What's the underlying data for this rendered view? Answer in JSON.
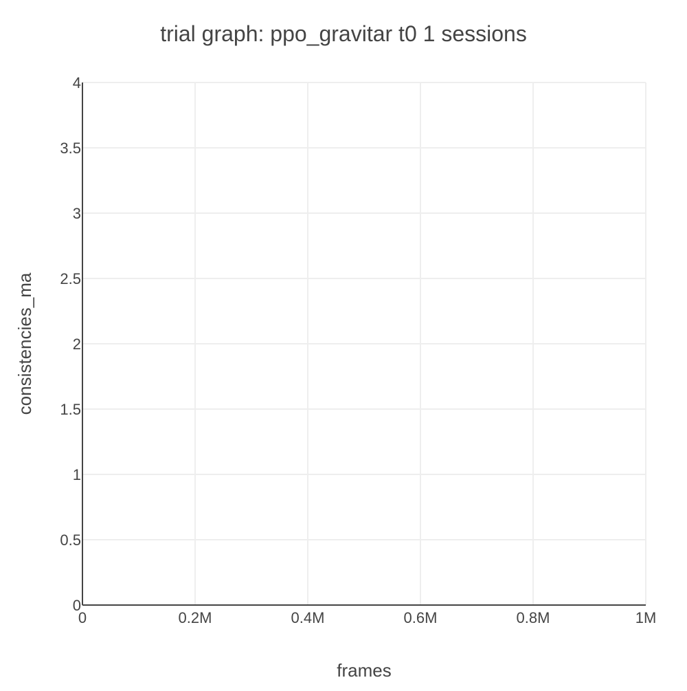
{
  "chart_data": {
    "type": "line",
    "title": "trial graph: ppo_gravitar t0 1 sessions",
    "xlabel": "frames",
    "ylabel": "consistencies_ma",
    "xlim": [
      0,
      1000000
    ],
    "ylim": [
      0,
      4
    ],
    "grid": true,
    "x_ticks": [
      {
        "value": 0,
        "label": "0"
      },
      {
        "value": 200000,
        "label": "0.2M"
      },
      {
        "value": 400000,
        "label": "0.4M"
      },
      {
        "value": 600000,
        "label": "0.6M"
      },
      {
        "value": 800000,
        "label": "0.8M"
      },
      {
        "value": 1000000,
        "label": "1M"
      }
    ],
    "y_ticks": [
      {
        "value": 0,
        "label": "0"
      },
      {
        "value": 0.5,
        "label": "0.5"
      },
      {
        "value": 1,
        "label": "1"
      },
      {
        "value": 1.5,
        "label": "1.5"
      },
      {
        "value": 2,
        "label": "2"
      },
      {
        "value": 2.5,
        "label": "2.5"
      },
      {
        "value": 3,
        "label": "3"
      },
      {
        "value": 3.5,
        "label": "3.5"
      },
      {
        "value": 4,
        "label": "4"
      }
    ],
    "series": [],
    "colors": {
      "text": "#444444",
      "grid": "#eeeeee",
      "axis": "#444444",
      "background": "#ffffff"
    }
  }
}
